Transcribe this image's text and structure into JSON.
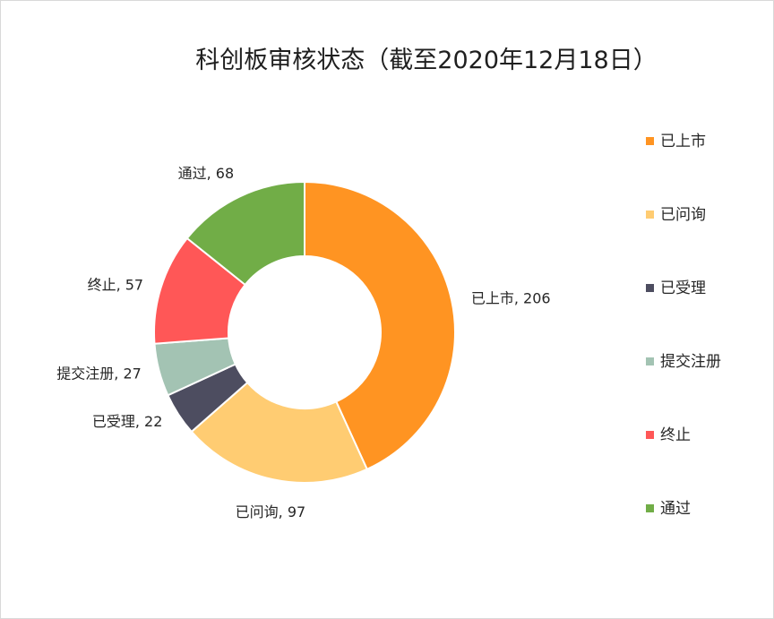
{
  "chart_data": {
    "type": "pie",
    "variant": "donut",
    "title": "科创板审核状态（截至2020年12月18日）",
    "categories": [
      "已上市",
      "已问询",
      "已受理",
      "提交注册",
      "终止",
      "通过"
    ],
    "values": [
      206,
      97,
      22,
      27,
      57,
      68
    ],
    "colors": [
      "#FF9422",
      "#FFCC72",
      "#4D4D60",
      "#A3C3B3",
      "#FF5757",
      "#71AD47"
    ],
    "data_labels": [
      "已上市, 206",
      "已问询, 97",
      "已受理, 22",
      "提交注册, 27",
      "终止, 57",
      "通过, 68"
    ],
    "legend": {
      "position": "right",
      "entries": [
        "已上市",
        "已问询",
        "已受理",
        "提交注册",
        "终止",
        "通过"
      ]
    },
    "grid": false
  }
}
